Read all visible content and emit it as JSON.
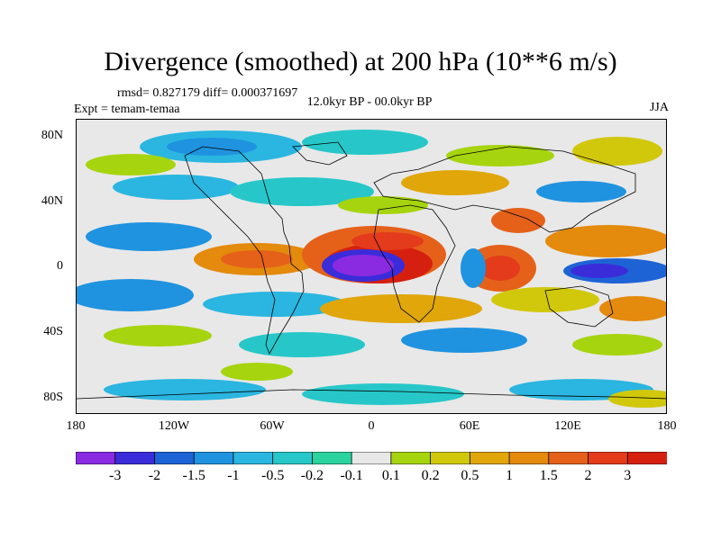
{
  "title": "Divergence (smoothed) at 200 hPa (10**6 m/s)",
  "stats": "rmsd= 0.827179 diff= 0.000371697",
  "experiment": "Expt = temam-temaa",
  "period": "12.0kyr BP - 00.0kyr BP",
  "season": "JJA",
  "lat_labels": [
    "80N",
    "40N",
    "0",
    "40S",
    "80S"
  ],
  "lon_labels": [
    "180",
    "120W",
    "60W",
    "0",
    "60E",
    "120E",
    "180"
  ],
  "colorbar": {
    "labels": [
      "-3",
      "-2",
      "-1.5",
      "-1",
      "-0.5",
      "-0.2",
      "-0.1",
      "0.1",
      "0.2",
      "0.5",
      "1",
      "1.5",
      "2",
      "3"
    ],
    "colors": [
      "#8a2be2",
      "#3b2cd9",
      "#1e63d6",
      "#1f93df",
      "#2ab6e0",
      "#27c7c9",
      "#2bd39e",
      "#e8e8e8",
      "#a6d40e",
      "#d1c80c",
      "#e0a60a",
      "#e48a0c",
      "#e5611a",
      "#e33b1c",
      "#d6200f"
    ]
  },
  "colors": {
    "neutral": "#e8e8e8",
    "coast": "#000000"
  }
}
